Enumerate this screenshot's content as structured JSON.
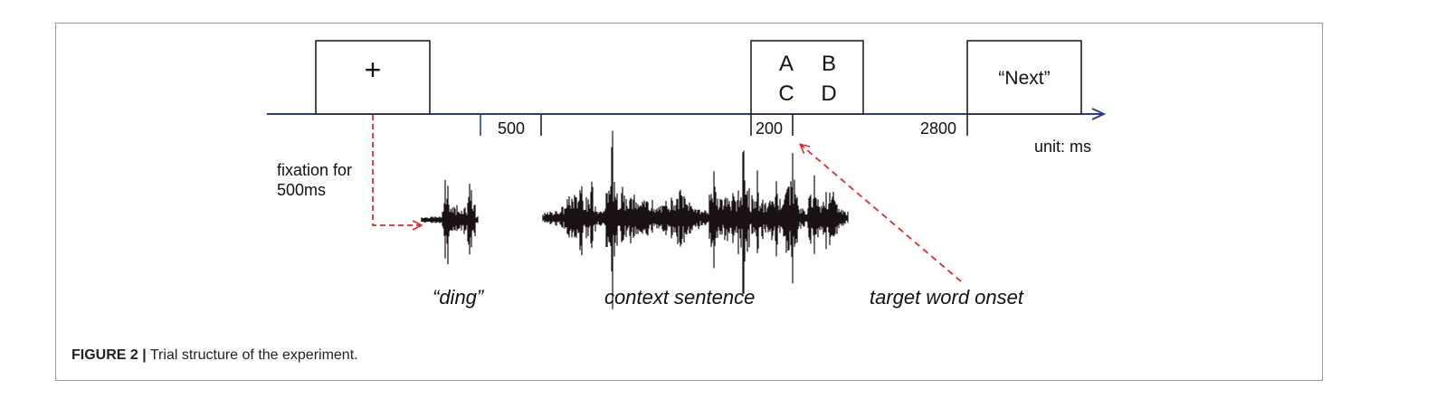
{
  "figure": {
    "caption_label": "FIGURE 2 |",
    "caption_text": "Trial structure of the experiment."
  },
  "diagram": {
    "fixation_box_symbol": "+",
    "choice_letters": [
      "A",
      "B",
      "C",
      "D"
    ],
    "next_label": "“Next”",
    "timeline_labels": {
      "d500": "500",
      "d200": "200",
      "d2800": "2800"
    },
    "unit_label": "unit: ms",
    "fixation_note_line1": "fixation for",
    "fixation_note_line2": "500ms",
    "ding_label": "“ding”",
    "context_label": "context sentence",
    "target_label": "target word onset"
  },
  "colors": {
    "timeline": "#2b3d8f",
    "arrow_dashed": "#e0292b",
    "waveform": "#1a1212",
    "box_stroke": "#222222",
    "frame_border": "#9a9a9a"
  }
}
